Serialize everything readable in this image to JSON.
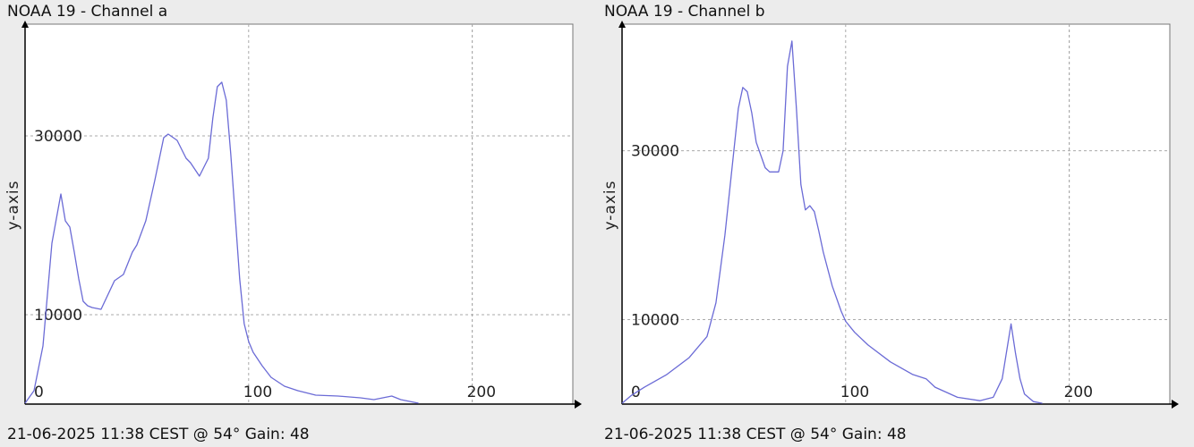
{
  "chart_data": [
    {
      "type": "line",
      "title": "NOAA 19 - Channel a",
      "footer": "21-06-2025 11:38 CEST @ 54° Gain: 48",
      "ylabel": "y-axis",
      "xlabel": "",
      "xlim": [
        0,
        245
      ],
      "ylim": [
        0,
        42500
      ],
      "x_ticks": [
        0,
        100,
        200
      ],
      "y_ticks": [
        10000,
        30000
      ],
      "grid": true,
      "line_color": "#6b6bd6",
      "series": [
        {
          "x": [
            0,
            4,
            8,
            12,
            16,
            18,
            20,
            22,
            24,
            26,
            28,
            30,
            34,
            40,
            44,
            48,
            50,
            54,
            58,
            62,
            64,
            68,
            72,
            74,
            78,
            82,
            84,
            86,
            88,
            90,
            92,
            94,
            96,
            98,
            100,
            102,
            106,
            110,
            116,
            122,
            130,
            140,
            150,
            156,
            160,
            164,
            168,
            172,
            176
          ],
          "y": [
            100,
            1500,
            6500,
            18000,
            23500,
            20500,
            19800,
            17000,
            14000,
            11500,
            11000,
            10800,
            10600,
            13800,
            14500,
            17000,
            17800,
            20500,
            25000,
            29800,
            30200,
            29500,
            27500,
            27000,
            25500,
            27500,
            32000,
            35500,
            36000,
            34000,
            28000,
            21000,
            14000,
            9000,
            7000,
            5800,
            4300,
            3000,
            2000,
            1500,
            1000,
            900,
            700,
            500,
            700,
            900,
            500,
            300,
            100
          ]
        }
      ]
    },
    {
      "type": "line",
      "title": "NOAA 19 - Channel b",
      "footer": "21-06-2025 11:38 CEST @ 54° Gain: 48",
      "ylabel": "y-axis",
      "xlabel": "",
      "xlim": [
        0,
        245
      ],
      "ylim": [
        0,
        45000
      ],
      "x_ticks": [
        0,
        100,
        200
      ],
      "y_ticks": [
        10000,
        30000
      ],
      "grid": true,
      "line_color": "#6b6bd6",
      "series": [
        {
          "x": [
            0,
            4,
            10,
            20,
            30,
            38,
            42,
            46,
            50,
            52,
            54,
            56,
            58,
            60,
            62,
            64,
            66,
            68,
            70,
            72,
            74,
            76,
            78,
            80,
            82,
            84,
            86,
            88,
            90,
            94,
            98,
            100,
            104,
            110,
            120,
            130,
            136,
            140,
            150,
            160,
            166,
            170,
            174,
            176,
            178,
            180,
            184,
            188
          ],
          "y": [
            100,
            1000,
            2000,
            3500,
            5500,
            8000,
            12000,
            20000,
            30000,
            35000,
            37500,
            37000,
            34500,
            31000,
            29500,
            28000,
            27500,
            27500,
            27500,
            30000,
            40000,
            43000,
            35000,
            26000,
            23000,
            23500,
            22800,
            20500,
            18000,
            14000,
            11000,
            9800,
            8500,
            7000,
            5000,
            3500,
            3000,
            2000,
            800,
            400,
            800,
            3000,
            9500,
            6000,
            3000,
            1200,
            300,
            100
          ]
        }
      ]
    }
  ]
}
